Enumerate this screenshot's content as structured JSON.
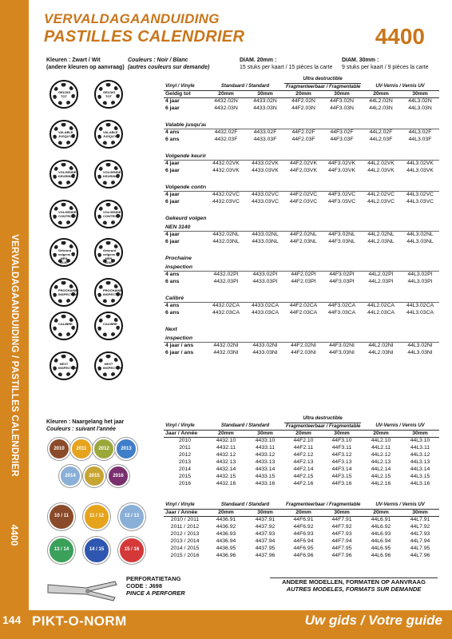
{
  "header": {
    "title_nl": "VERVALDAGAANDUIDING",
    "title_fr": "PASTILLES CALENDRIER",
    "code": "4400"
  },
  "sidebar": {
    "text": "VERVALDAGAANDUIDING / PASTILLES CALENDRIER",
    "code": "4400"
  },
  "info": {
    "colors_nl": "Kleuren : Zwart / Wit",
    "colors_nl_2": "(andere kleuren op aanvraag)",
    "colors_fr": "Couleurs : Noir / Blanc",
    "colors_fr_2": "(autres couleurs sur demande)",
    "diam20": "DIAM. 20mm :",
    "diam20_text": "15 stuks per kaart / 15 pièces la carte",
    "diam30": "DIAM. 30mm :",
    "diam30_text": "9 stuks per kaart / 9 pièces la carte",
    "colors2_nl": "Kleuren : Naargelang het jaar",
    "colors2_fr": "Couleurs : suivant l'année"
  },
  "table1": {
    "head_top": [
      "",
      "",
      "",
      "Ultra destructible",
      "",
      "",
      ""
    ],
    "head": [
      "Vinyl / Vinyle",
      "Standaard / Standard",
      "",
      "Fragmenteerbaar / Fragmentable",
      "",
      "UV-Vernis / Vernis UV",
      ""
    ],
    "sizes": [
      "Geldig tot",
      "20mm",
      "30mm",
      "20mm",
      "30mm",
      "20mm",
      "30mm"
    ],
    "sections": [
      {
        "label": "",
        "rows": [
          [
            "4 jaar",
            "4432.02N",
            "4433.02N",
            "44F2.02N",
            "44F3.02N",
            "44L2.02N",
            "44L3.02N"
          ],
          [
            "6 jaar",
            "4432.03N",
            "4433.03N",
            "44F2.03N",
            "44F3.03N",
            "44L2.03N",
            "44L3.03N"
          ]
        ]
      },
      {
        "label": "Valable jusqu'au",
        "rows": [
          [
            "4 ans",
            "4432.02F",
            "4433.02F",
            "44F2.02F",
            "44F3.02F",
            "44L2.02F",
            "44L3.02F"
          ],
          [
            "6 ans",
            "4432.03F",
            "4433.03F",
            "44F2.03F",
            "44F3.03F",
            "44L2.03F",
            "44L3.03F"
          ]
        ]
      },
      {
        "label": "Volgende keuring",
        "rows": [
          [
            "4 jaar",
            "4432.02VK",
            "4433.02VK",
            "44F2.02VK",
            "44F3.02VK",
            "44L2.02VK",
            "44L3.02VK"
          ],
          [
            "6 jaar",
            "4432.03VK",
            "4433.03VK",
            "44F2.03VK",
            "44F3.03VK",
            "44L2.03VK",
            "44L3.03VK"
          ]
        ]
      },
      {
        "label": "Volgende controle",
        "rows": [
          [
            "4 jaar",
            "4432.02VC",
            "4433.02VC",
            "44F2.02VC",
            "44F3.02VC",
            "44L2.02VC",
            "44L3.02VC"
          ],
          [
            "6 jaar",
            "4432.03VC",
            "4433.03VC",
            "44F2.03VC",
            "44F3.03VC",
            "44L2.03VC",
            "44L3.03VC"
          ]
        ]
      },
      {
        "label": "Gekeurd volgens NEN 3140",
        "rows": [
          [
            "4 jaar",
            "4432.02NL",
            "4433.02NL",
            "44F2.02NL",
            "44F3.02NL",
            "44L2.02NL",
            "44L3.02NL"
          ],
          [
            "6 jaar",
            "4432.03NL",
            "4433.03NL",
            "44F2.03NL",
            "44F3.03NL",
            "44L2.03NL",
            "44L3.03NL"
          ]
        ]
      },
      {
        "label": "Prochaine inspection",
        "rows": [
          [
            "4 ans",
            "4432.02PI",
            "4433.02PI",
            "44F2.02PI",
            "44F3.02PI",
            "44L2.02PI",
            "44L3.02PI"
          ],
          [
            "6 ans",
            "4432.03PI",
            "4433.03PI",
            "44F2.03PI",
            "44F3.03PI",
            "44L2.03PI",
            "44L3.03PI"
          ]
        ]
      },
      {
        "label": "Calibré",
        "rows": [
          [
            "4 ans",
            "4432.02CA",
            "4433.02CA",
            "44F2.02CA",
            "44F3.02CA",
            "44L2.02CA",
            "44L3.02CA"
          ],
          [
            "6 ans",
            "4432.03CA",
            "4433.03CA",
            "44F2.03CA",
            "44F3.03CA",
            "44L2.03CA",
            "44L3.03CA"
          ]
        ]
      },
      {
        "label": "Next inspection",
        "rows": [
          [
            "4 jaar / ans",
            "4432.02NI",
            "4433.02NI",
            "44F2.02NI",
            "44F3.02NI",
            "44L2.02NI",
            "44L3.02NI"
          ],
          [
            "6 jaar / ans",
            "4432.03NI",
            "4433.03NI",
            "44F2.03NI",
            "44F3.03NI",
            "44L2.03NI",
            "44L3.03NI"
          ]
        ]
      }
    ]
  },
  "table2": {
    "head_top": "Ultra destructible",
    "head": [
      "Vinyl / Vinyle",
      "Standaard / Standard",
      "Fragmenteerbaar / Fragmentable",
      "UV-Vernis / Vernis UV"
    ],
    "sizes": [
      "Jaar / Année",
      "20mm",
      "30mm",
      "20mm",
      "30mm",
      "20mm",
      "30mm"
    ],
    "rows": [
      [
        "2010",
        "4432.10",
        "4433.10",
        "44F2.10",
        "44F3.10",
        "44L2.10",
        "44L3.10"
      ],
      [
        "2011",
        "4432.11",
        "4433.11",
        "44F2.11",
        "44F3.11",
        "44L2.11",
        "44L3.11"
      ],
      [
        "2012",
        "4432.12",
        "4433.12",
        "44F2.12",
        "44F3.12",
        "44L2.12",
        "44L3.12"
      ],
      [
        "2013",
        "4432.13",
        "4433.13",
        "44F2.13",
        "44F3.13",
        "44L2.13",
        "44L3.13"
      ],
      [
        "2014",
        "4432.14",
        "4433.14",
        "44F2.14",
        "44F3.14",
        "44L2.14",
        "44L3.14"
      ],
      [
        "2015",
        "4432.15",
        "4433.15",
        "44F2.15",
        "44F3.15",
        "44L2.15",
        "44L3.15"
      ],
      [
        "2016",
        "4432.16",
        "4433.16",
        "44F2.16",
        "44F3.16",
        "44L2.16",
        "44L3.16"
      ]
    ]
  },
  "table3": {
    "sizes": [
      "Jaar / Année",
      "20mm",
      "30mm",
      "20mm",
      "30mm",
      "20mm",
      "30mm"
    ],
    "rows": [
      [
        "2010 / 2011",
        "4436.91",
        "4437.91",
        "44F6.91",
        "44F7.91",
        "44L6.91",
        "44L7.91"
      ],
      [
        "2011 / 2012",
        "4436.92",
        "4437.92",
        "44F6.92",
        "44F7.92",
        "44L6.92",
        "44L7.92"
      ],
      [
        "2012 / 2013",
        "4436.93",
        "4437.93",
        "44F6.93",
        "44F7.93",
        "44L6.93",
        "44L7.93"
      ],
      [
        "2013 / 2014",
        "4436.94",
        "4437.94",
        "44F6.94",
        "44F7.94",
        "44L6.94",
        "44L7.94"
      ],
      [
        "2014 / 2015",
        "4436.95",
        "4437.95",
        "44F6.95",
        "44F7.95",
        "44L6.95",
        "44L7.95"
      ],
      [
        "2015 / 2016",
        "4436.96",
        "4437.96",
        "44F6.96",
        "44F7.96",
        "44L6.96",
        "44L7.96"
      ]
    ]
  },
  "dials": [
    {
      "a": "GELDIG TOT",
      "b": "GELDIG TOT"
    },
    {
      "a": "VALABLE JUSQU'AU",
      "b": "VALABLE JUSQU'AU"
    },
    {
      "a": "VOLGENDE KEURING",
      "b": "VOLGENDE KEURING"
    },
    {
      "a": "VOLGENDE CONTROLE",
      "b": "VOLGENDE CONTROLE"
    },
    {
      "a": "Gekeurd volgens NEN 3140",
      "b": "Gekeurd volgens NEN 3140"
    },
    {
      "a": "PROCHAINE INSPECTION",
      "b": "PROCHAINE INSPECTION"
    },
    {
      "a": "CALIBRE",
      "b": "CALIBRE"
    },
    {
      "a": "NEXT INSPECTION",
      "b": "NEXT INSPECTION"
    }
  ],
  "year_dials": [
    {
      "label": "2010",
      "color": "#8a4b2a"
    },
    {
      "label": "2011",
      "color": "#e6a31c"
    },
    {
      "label": "2012",
      "color": "#9aa83a"
    },
    {
      "label": "2013",
      "color": "#3f7ec8"
    },
    {
      "label": "2014",
      "color": "#8ab0d8"
    },
    {
      "label": "2015",
      "color": "#c7a532"
    },
    {
      "label": "2016",
      "color": "#7a2f6e"
    }
  ],
  "dual_dials": [
    {
      "label": "10 / 11",
      "color": "#8a4b2a"
    },
    {
      "label": "11 / 12",
      "color": "#e6a31c"
    },
    {
      "label": "12 / 13",
      "color": "#8ab0d8"
    },
    {
      "label": "13 / 14",
      "color": "#3aa05a"
    },
    {
      "label": "14 / 15",
      "color": "#2f56b0"
    },
    {
      "label": "15 / 16",
      "color": "#d53838"
    }
  ],
  "perforator": {
    "line1": "PERFORATIETANG",
    "line2": "CODE : J698",
    "line3": "PINCE A PERFORER"
  },
  "notice": {
    "nl": "ANDERE MODELLEN, FORMATEN OP AANVRAAG",
    "fr": "AUTRES MODELES, FORMATS SUR DEMANDE"
  },
  "footer": {
    "page": "144",
    "brand": "PIKT-O-NORM",
    "guide": "Uw gids / Votre guide"
  },
  "colors": {
    "accent": "#d6861f",
    "title": "#c9761b"
  }
}
